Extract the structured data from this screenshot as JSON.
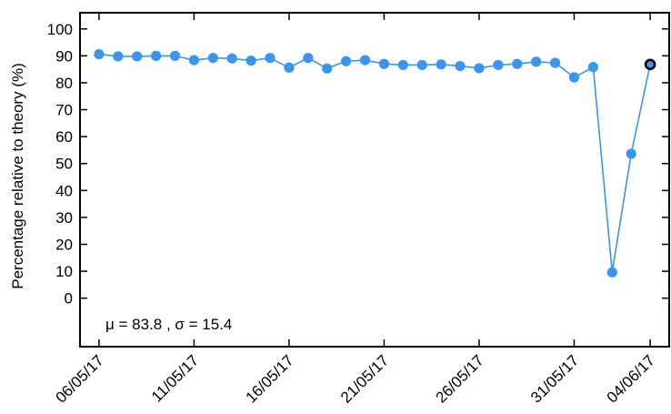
{
  "chart_data": {
    "type": "line",
    "ylabel": "Percentage relative to theory (%)",
    "xlabel": "",
    "ylim": [
      -18,
      106
    ],
    "yticks": [
      0,
      10,
      20,
      30,
      40,
      50,
      60,
      70,
      80,
      90,
      100
    ],
    "xlim": [
      "2017-05-05",
      "2017-06-05"
    ],
    "xticks": [
      {
        "date": "2017-05-06",
        "label": "06/05/17"
      },
      {
        "date": "2017-05-11",
        "label": "11/05/17"
      },
      {
        "date": "2017-05-16",
        "label": "16/05/17"
      },
      {
        "date": "2017-05-21",
        "label": "21/05/17"
      },
      {
        "date": "2017-05-26",
        "label": "26/05/17"
      },
      {
        "date": "2017-05-31",
        "label": "31/05/17"
      },
      {
        "date": "2017-06-04",
        "label": "04/06/17"
      }
    ],
    "grid": false,
    "annotation": "μ = 83.8 , σ = 15.4",
    "series": [
      {
        "color": "#3a95f0",
        "x": [
          "2017-05-06",
          "2017-05-07",
          "2017-05-08",
          "2017-05-09",
          "2017-05-10",
          "2017-05-11",
          "2017-05-12",
          "2017-05-13",
          "2017-05-14",
          "2017-05-15",
          "2017-05-16",
          "2017-05-17",
          "2017-05-18",
          "2017-05-19",
          "2017-05-20",
          "2017-05-21",
          "2017-05-22",
          "2017-05-23",
          "2017-05-24",
          "2017-05-25",
          "2017-05-26",
          "2017-05-27",
          "2017-05-28",
          "2017-05-29",
          "2017-05-30",
          "2017-05-31",
          "2017-06-01",
          "2017-06-02",
          "2017-06-03",
          "2017-06-04"
        ],
        "y": [
          90.6,
          89.8,
          89.8,
          90.0,
          90.0,
          88.4,
          89.2,
          89.0,
          88.2,
          89.2,
          85.6,
          89.2,
          85.3,
          88.0,
          88.4,
          87.0,
          86.6,
          86.6,
          86.8,
          86.2,
          85.4,
          86.6,
          87.0,
          87.8,
          87.4,
          82.0,
          85.8,
          9.6,
          53.6,
          86.8
        ],
        "highlight_last": true
      }
    ]
  }
}
